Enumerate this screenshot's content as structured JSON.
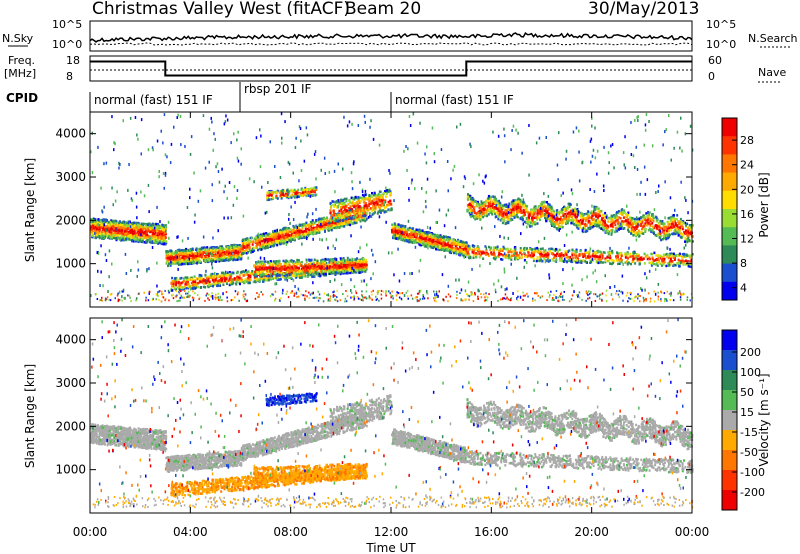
{
  "header": {
    "title": "Christmas Valley West (fitACF)",
    "beam": "Beam 20",
    "date": "30/May/2013"
  },
  "side_labels": {
    "nsky": "N.Sky",
    "nsearch": "N.Search",
    "freq": "Freq.",
    "freq_unit": "[MHz]",
    "nave": "Nave",
    "cpid": "CPID"
  },
  "colors": {
    "power_scale": [
      "#0000ee",
      "#1a4fd0",
      "#2e8b57",
      "#55bb55",
      "#99dd33",
      "#ffdd00",
      "#ffaa00",
      "#ff7700",
      "#ff3300",
      "#ee0000"
    ],
    "velocity_scale": [
      "#0000ee",
      "#1a4fd0",
      "#2e8b57",
      "#55bb55",
      "#aaaaaa",
      "#ffaa00",
      "#ff7700",
      "#ff3300",
      "#ee0000"
    ]
  },
  "chart_data": [
    {
      "type": "line",
      "name": "noise",
      "yticks": [
        "10^5",
        "10^0"
      ],
      "right_yticks": [
        "10^5",
        "10^0"
      ]
    },
    {
      "type": "line",
      "name": "frequency-nave",
      "left_yticks": [
        "18",
        "8"
      ],
      "right_yticks": [
        "60",
        "0"
      ],
      "freq_steps": [
        [
          0,
          15.8
        ],
        [
          3,
          15.8
        ],
        [
          3,
          10.2
        ],
        [
          15,
          10.2
        ],
        [
          15,
          15.8
        ],
        [
          24,
          15.8
        ]
      ]
    },
    {
      "type": "table",
      "name": "cpid",
      "segments": [
        {
          "label": "normal (fast) 151 IF",
          "start": 0,
          "end": 6
        },
        {
          "label": "rbsp 201 IF",
          "start": 6,
          "end": 12
        },
        {
          "label": "normal (fast) 151 IF",
          "start": 12,
          "end": 24
        }
      ]
    },
    {
      "type": "heatmap",
      "name": "power",
      "ylabel": "Slant Range [km]",
      "ylim": [
        0,
        4500
      ],
      "yticks": [
        1000,
        2000,
        3000,
        4000
      ],
      "xlim": [
        0,
        24
      ],
      "colorbar_label": "Power [dB]",
      "colorbar_ticks": [
        "28",
        "24",
        "20",
        "16",
        "12",
        "8",
        "4"
      ]
    },
    {
      "type": "heatmap",
      "name": "velocity",
      "ylabel": "Slant Range [km]",
      "ylim": [
        0,
        4500
      ],
      "yticks": [
        1000,
        2000,
        3000,
        4000
      ],
      "xlim": [
        0,
        24
      ],
      "xlabel": "Time UT",
      "xticks": [
        "00:00",
        "04:00",
        "08:00",
        "12:00",
        "16:00",
        "20:00",
        "00:00"
      ],
      "colorbar_label": "Velocity [m s⁻¹]",
      "colorbar_ticks": [
        "200",
        "100",
        "50",
        "15",
        "-15",
        "-50",
        "-100",
        "-200"
      ]
    }
  ]
}
